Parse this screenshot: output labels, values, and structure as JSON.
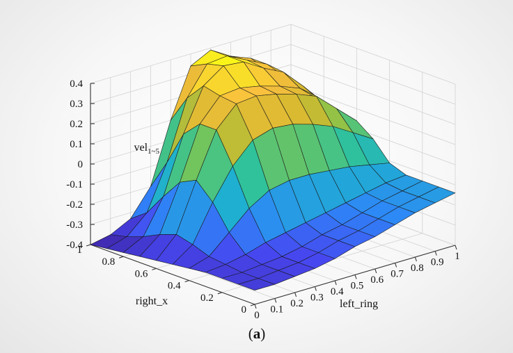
{
  "chart_data": {
    "type": "surface",
    "zlabel": "vel",
    "zlabel_sub": "1~5",
    "xlabel": "left_ring",
    "ylabel": "right_x",
    "caption_open": "(",
    "caption_letter": "a",
    "caption_close": ")",
    "xlim": [
      0,
      1
    ],
    "ylim": [
      0,
      1
    ],
    "zlim": [
      -0.4,
      0.4
    ],
    "x_ticks": [
      "0",
      "0.1",
      "0.2",
      "0.3",
      "0.4",
      "0.5",
      "0.6",
      "0.7",
      "0.8",
      "0.9",
      "1"
    ],
    "y_ticks": [
      "0",
      "0.2",
      "0.4",
      "0.6",
      "0.8",
      "1"
    ],
    "z_ticks": [
      "-0.4",
      "-0.3",
      "-0.2",
      "-0.1",
      "0",
      "0.1",
      "0.2",
      "0.3",
      "0.4"
    ],
    "grid": true,
    "colormap": [
      "#3e26a8",
      "#4747f0",
      "#2e87f7",
      "#1fafd0",
      "#30c29a",
      "#82c44e",
      "#d3b92e",
      "#f9be3f",
      "#f9fb15"
    ],
    "x": [
      0,
      0.1,
      0.2,
      0.3,
      0.4,
      0.5,
      0.6,
      0.7,
      0.8,
      0.9,
      1.0
    ],
    "y": [
      0,
      0.1,
      0.2,
      0.3,
      0.4,
      0.5,
      0.6,
      0.7,
      0.8,
      0.9,
      1.0
    ],
    "z_rows_by_y": [
      [
        -0.33,
        -0.33,
        -0.32,
        -0.31,
        -0.29,
        -0.26,
        -0.24,
        -0.21,
        -0.18,
        -0.16,
        -0.14
      ],
      [
        -0.33,
        -0.33,
        -0.32,
        -0.31,
        -0.29,
        -0.26,
        -0.24,
        -0.21,
        -0.18,
        -0.16,
        -0.14
      ],
      [
        -0.33,
        -0.33,
        -0.32,
        -0.31,
        -0.29,
        -0.26,
        -0.24,
        -0.21,
        -0.18,
        -0.16,
        -0.14
      ],
      [
        -0.33,
        -0.32,
        -0.3,
        -0.27,
        -0.25,
        -0.23,
        -0.21,
        -0.19,
        -0.17,
        -0.15,
        -0.14
      ],
      [
        -0.34,
        -0.31,
        -0.22,
        -0.13,
        -0.07,
        -0.05,
        -0.05,
        -0.06,
        -0.07,
        -0.09,
        -0.11
      ],
      [
        -0.35,
        -0.28,
        -0.1,
        0.05,
        0.15,
        0.18,
        0.17,
        0.14,
        0.1,
        0.04,
        -0.02
      ],
      [
        -0.36,
        -0.26,
        -0.02,
        0.2,
        0.3,
        0.31,
        0.29,
        0.26,
        0.22,
        0.13,
        0.04
      ],
      [
        -0.37,
        -0.29,
        -0.06,
        0.2,
        0.31,
        0.32,
        0.3,
        0.27,
        0.23,
        0.14,
        0.05
      ],
      [
        -0.38,
        -0.33,
        -0.16,
        0.12,
        0.33,
        0.4,
        0.39,
        0.33,
        0.28,
        0.18,
        0.07
      ],
      [
        -0.39,
        -0.36,
        -0.27,
        -0.05,
        0.24,
        0.38,
        0.39,
        0.34,
        0.29,
        0.19,
        0.08
      ],
      [
        -0.4,
        -0.38,
        -0.33,
        -0.2,
        0.1,
        0.34,
        0.39,
        0.33,
        0.29,
        0.19,
        0.08
      ]
    ]
  }
}
